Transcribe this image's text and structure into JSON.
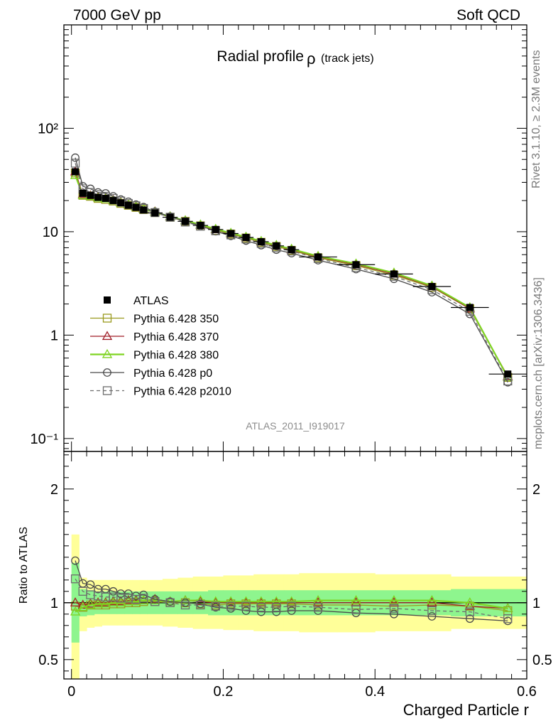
{
  "header": {
    "left": "7000 GeV pp",
    "right": "Soft QCD"
  },
  "side_text": {
    "rivet": "Rivet 3.1.10, ≥ 2.3M events",
    "mcplots": "mcplots.cern.ch [arXiv:1306.3436]"
  },
  "chart_data": {
    "type": "line",
    "title": "Radial profile",
    "title_symbol": "ρ",
    "title_suffix": "(track jets)",
    "analysis_id": "ATLAS_2011_I919017",
    "xlabel": "Charged Particle r",
    "ylabel": "",
    "ratio_ylabel": "Ratio to ATLAS",
    "xlim": [
      -0.01,
      0.6
    ],
    "ylim": [
      0.075,
      1000
    ],
    "ylog": true,
    "ratio_ylim": [
      0.33,
      2.33
    ],
    "x_ticks": [
      "0",
      "0.2",
      "0.4",
      "0.6"
    ],
    "y_ticks": [
      "10⁻¹",
      "1",
      "10",
      "10²"
    ],
    "ratio_ticks": [
      "0.5",
      "1",
      "2"
    ],
    "legend_position": "lower-left",
    "x": [
      0.005,
      0.015,
      0.025,
      0.035,
      0.045,
      0.055,
      0.065,
      0.075,
      0.085,
      0.095,
      0.11,
      0.13,
      0.15,
      0.17,
      0.19,
      0.21,
      0.23,
      0.25,
      0.27,
      0.29,
      0.325,
      0.375,
      0.425,
      0.475,
      0.525,
      0.575
    ],
    "x_err": [
      0.005,
      0.005,
      0.005,
      0.005,
      0.005,
      0.005,
      0.005,
      0.005,
      0.005,
      0.005,
      0.01,
      0.01,
      0.01,
      0.01,
      0.01,
      0.01,
      0.01,
      0.01,
      0.01,
      0.01,
      0.025,
      0.025,
      0.025,
      0.025,
      0.025,
      0.025
    ],
    "series": [
      {
        "name": "ATLAS",
        "marker": "square-filled",
        "color": "#000000",
        "values": [
          38,
          23.5,
          22.5,
          21.5,
          21,
          20,
          19,
          18,
          17.2,
          16.2,
          15.2,
          13.8,
          12.6,
          11.5,
          10.5,
          9.6,
          8.8,
          8.0,
          7.3,
          6.7,
          5.7,
          4.8,
          3.9,
          2.95,
          1.85,
          0.42
        ]
      },
      {
        "name": "Pythia 6.428 350",
        "marker": "square-open",
        "color": "#9a9a1e",
        "values": [
          37,
          22.5,
          22.0,
          21.0,
          20.5,
          19.8,
          18.8,
          18.0,
          17.2,
          16.4,
          15.3,
          13.8,
          12.6,
          11.4,
          10.3,
          9.5,
          8.7,
          7.9,
          7.2,
          6.6,
          5.6,
          4.7,
          3.8,
          2.9,
          1.8,
          0.39
        ]
      },
      {
        "name": "Pythia 6.428 370",
        "marker": "triangle-open",
        "color": "#a01e28",
        "values": [
          38,
          23.0,
          22.3,
          21.5,
          21.0,
          20.2,
          19.2,
          18.3,
          17.5,
          16.6,
          15.6,
          14.0,
          12.8,
          11.6,
          10.5,
          9.6,
          8.8,
          8.0,
          7.3,
          6.7,
          5.7,
          4.8,
          3.9,
          2.95,
          1.8,
          0.4
        ]
      },
      {
        "name": "Pythia 6.428 380",
        "marker": "triangle-open",
        "color": "#7ed321",
        "values": [
          35,
          22.5,
          22.0,
          21.2,
          20.8,
          20.0,
          19.0,
          18.2,
          17.4,
          16.5,
          15.5,
          14.0,
          12.8,
          11.7,
          10.6,
          9.7,
          8.9,
          8.1,
          7.4,
          6.8,
          5.8,
          4.9,
          4.0,
          3.0,
          1.85,
          0.39
        ]
      },
      {
        "name": "Pythia 6.428 p0",
        "marker": "circle-open",
        "color": "#4a4a4a",
        "values": [
          52,
          27.5,
          26.0,
          24.0,
          23.5,
          22.0,
          20.5,
          19.5,
          18.3,
          17.3,
          15.6,
          14.0,
          12.6,
          11.4,
          10.1,
          9.1,
          8.2,
          7.4,
          6.7,
          6.2,
          5.3,
          4.35,
          3.5,
          2.6,
          1.6,
          0.35
        ]
      },
      {
        "name": "Pythia 6.428 p2010",
        "marker": "square-open-dashed",
        "color": "#6e6e6e",
        "values": [
          46,
          26.0,
          24.0,
          22.8,
          22.0,
          21.0,
          19.8,
          18.7,
          17.8,
          16.8,
          15.3,
          13.8,
          12.4,
          11.3,
          10.2,
          9.3,
          8.5,
          7.7,
          7.0,
          6.5,
          5.5,
          4.5,
          3.7,
          2.75,
          1.7,
          0.36
        ]
      }
    ],
    "ratio_series": [
      {
        "name": "Pythia 6.428 350",
        "values": [
          0.97,
          0.96,
          0.98,
          0.98,
          0.98,
          0.99,
          0.99,
          1.0,
          1.0,
          1.01,
          1.01,
          1.0,
          1.0,
          0.99,
          0.98,
          0.99,
          0.99,
          0.99,
          0.99,
          0.99,
          0.98,
          0.98,
          0.97,
          0.98,
          0.97,
          0.93
        ]
      },
      {
        "name": "Pythia 6.428 370",
        "values": [
          1.0,
          0.98,
          0.99,
          1.0,
          1.0,
          1.01,
          1.01,
          1.02,
          1.02,
          1.02,
          1.03,
          1.01,
          1.02,
          1.01,
          1.0,
          1.0,
          1.0,
          1.0,
          1.0,
          1.0,
          1.0,
          1.0,
          1.0,
          1.0,
          0.97,
          0.95
        ]
      },
      {
        "name": "Pythia 6.428 380",
        "values": [
          0.92,
          0.96,
          0.98,
          0.99,
          0.99,
          1.0,
          1.0,
          1.01,
          1.01,
          1.02,
          1.02,
          1.01,
          1.02,
          1.02,
          1.01,
          1.01,
          1.01,
          1.01,
          1.01,
          1.01,
          1.02,
          1.02,
          1.02,
          1.02,
          1.0,
          0.95
        ]
      },
      {
        "name": "Pythia 6.428 p0",
        "values": [
          1.37,
          1.17,
          1.16,
          1.12,
          1.12,
          1.1,
          1.08,
          1.08,
          1.06,
          1.07,
          1.03,
          1.01,
          1.0,
          0.99,
          0.96,
          0.95,
          0.93,
          0.92,
          0.92,
          0.93,
          0.93,
          0.91,
          0.9,
          0.88,
          0.86,
          0.84
        ]
      },
      {
        "name": "Pythia 6.428 p2010",
        "values": [
          1.21,
          1.1,
          1.07,
          1.06,
          1.05,
          1.05,
          1.04,
          1.04,
          1.03,
          1.04,
          1.01,
          1.0,
          0.98,
          0.98,
          0.97,
          0.97,
          0.97,
          0.96,
          0.96,
          0.97,
          0.96,
          0.94,
          0.95,
          0.93,
          0.92,
          0.86
        ]
      }
    ],
    "ratio_band_stat": {
      "lo": [
        0.65,
        0.88,
        0.89,
        0.9,
        0.9,
        0.9,
        0.9,
        0.9,
        0.9,
        0.9,
        0.9,
        0.9,
        0.9,
        0.9,
        0.89,
        0.89,
        0.89,
        0.89,
        0.89,
        0.89,
        0.89,
        0.89,
        0.89,
        0.89,
        0.88,
        0.88
      ],
      "hi": [
        1.35,
        1.12,
        1.11,
        1.1,
        1.1,
        1.1,
        1.1,
        1.1,
        1.1,
        1.1,
        1.1,
        1.1,
        1.1,
        1.1,
        1.11,
        1.11,
        1.11,
        1.11,
        1.11,
        1.11,
        1.11,
        1.11,
        1.11,
        1.11,
        1.12,
        1.12
      ]
    },
    "ratio_band_syst": {
      "lo": [
        0.3,
        0.75,
        0.78,
        0.79,
        0.8,
        0.8,
        0.8,
        0.8,
        0.8,
        0.8,
        0.8,
        0.79,
        0.78,
        0.77,
        0.77,
        0.76,
        0.76,
        0.75,
        0.75,
        0.75,
        0.74,
        0.74,
        0.75,
        0.75,
        0.77,
        0.77
      ],
      "hi": [
        1.6,
        1.22,
        1.2,
        1.2,
        1.2,
        1.2,
        1.2,
        1.2,
        1.2,
        1.2,
        1.2,
        1.21,
        1.22,
        1.23,
        1.23,
        1.24,
        1.24,
        1.25,
        1.25,
        1.25,
        1.26,
        1.26,
        1.25,
        1.25,
        1.23,
        1.23
      ]
    }
  }
}
